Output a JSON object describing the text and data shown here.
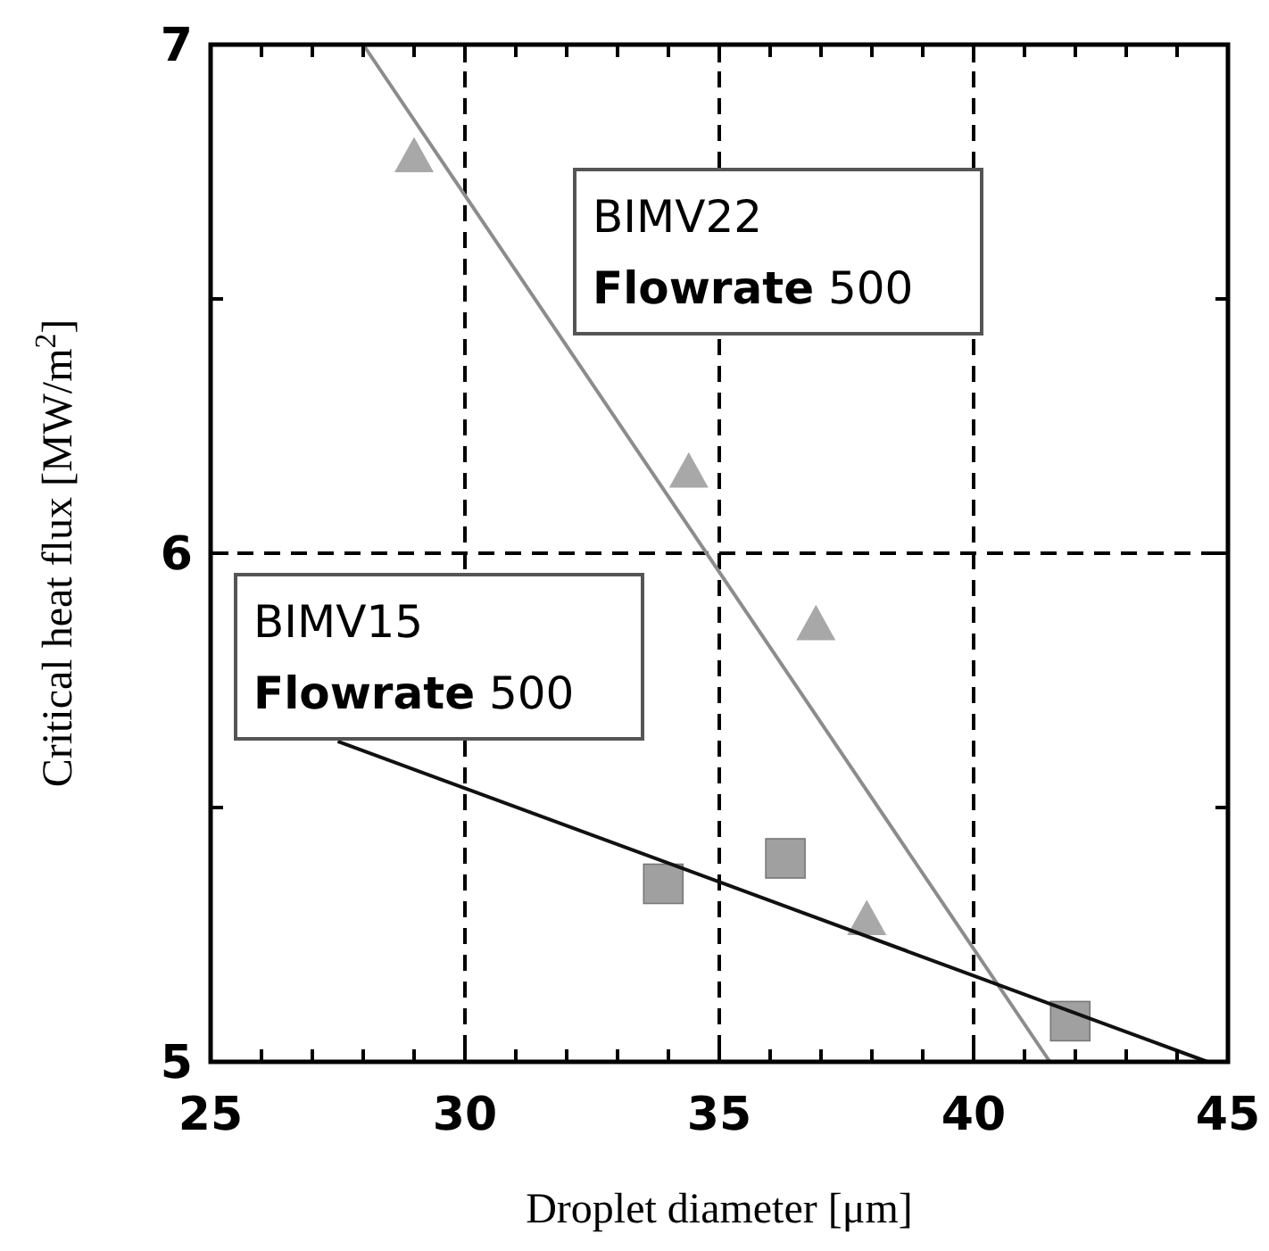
{
  "chart_data": {
    "type": "scatter",
    "xlabel": "Droplet diameter [μm]",
    "ylabel": "Critical heat flux [MW/m$^{2}$]",
    "xlim": [
      25,
      45
    ],
    "ylim": [
      5,
      7
    ],
    "xticks": [
      25,
      {
        "value": 26,
        "label": null
      },
      {
        "value": 27,
        "label": null
      },
      {
        "value": 28,
        "label": null
      },
      {
        "value": 29,
        "label": null
      },
      30,
      {
        "value": 31,
        "label": null
      },
      {
        "value": 32,
        "label": null
      },
      {
        "value": 33,
        "label": null
      },
      {
        "value": 34,
        "label": null
      },
      35,
      {
        "value": 36,
        "label": null
      },
      {
        "value": 37,
        "label": null
      },
      {
        "value": 38,
        "label": null
      },
      {
        "value": 39,
        "label": null
      },
      40,
      {
        "value": 41,
        "label": null
      },
      {
        "value": 42,
        "label": null
      },
      {
        "value": 43,
        "label": null
      },
      {
        "value": 44,
        "label": null
      },
      45
    ],
    "yticks": [
      5,
      {
        "value": 5.5,
        "label": null
      },
      6,
      {
        "value": 6.5,
        "label": null
      },
      7
    ],
    "grid": true,
    "annotations": [
      "BIMV22\nFlowrate 500",
      "BIMV15\nFlowrate 500"
    ],
    "series": [
      {
        "marker": "triangle",
        "color": "#a8a8a8",
        "x": [
          29.0,
          34.4,
          36.9,
          37.9
        ],
        "values": [
          6.78,
          6.16,
          5.86,
          5.28
        ]
      },
      {
        "marker": "square",
        "color": "#a0a0a0",
        "x": [
          33.9,
          36.3,
          41.9
        ],
        "values": [
          5.35,
          5.4,
          5.08
        ]
      },
      {
        "type": "line",
        "marker": "none",
        "color": "#8c8c8c",
        "x": [
          28.0,
          41.5
        ],
        "values": [
          7.0,
          5.0
        ]
      },
      {
        "type": "line",
        "marker": "none",
        "color": "#111111",
        "x": [
          27.5,
          44.6
        ],
        "values": [
          5.63,
          5.0
        ]
      }
    ]
  }
}
